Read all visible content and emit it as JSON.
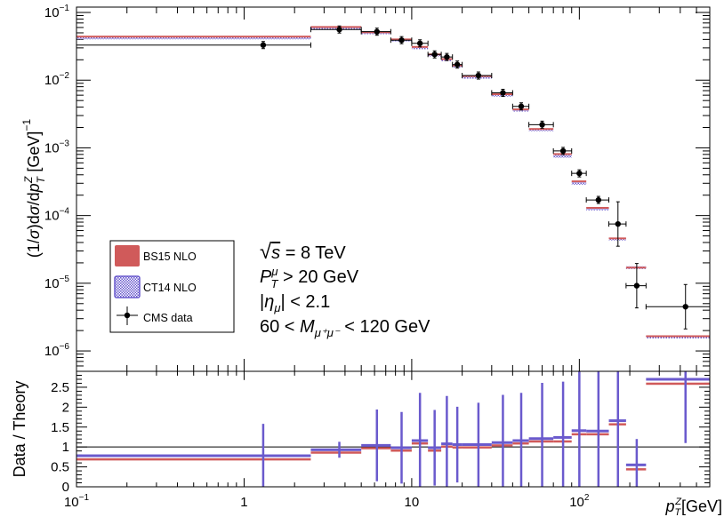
{
  "chart_data": {
    "type": "line",
    "x_scale": "log",
    "xlim": [
      0.1,
      600
    ],
    "x_tick_labels": [
      "10^{-1}",
      "1",
      "10",
      "10^{2}"
    ],
    "xlabel": "p_T^Z [GeV]",
    "upper": {
      "ylabel": "(1/σ)dσ/dp_T^Z [GeV]^{-1}",
      "y_scale": "log",
      "ylim": [
        5e-07,
        0.12
      ],
      "y_tick_labels": [
        "10^{-6}",
        "10^{-5}",
        "10^{-4}",
        "10^{-3}",
        "10^{-2}",
        "10^{-1}"
      ],
      "bin_edges": [
        0.1,
        2.5,
        5,
        7.5,
        10,
        12.5,
        15,
        17.5,
        20,
        30,
        40,
        50,
        70,
        90,
        110,
        150,
        190,
        250,
        600
      ],
      "series": [
        {
          "name": "BS15 NLO",
          "color": "#d05a5a",
          "values": [
            0.044,
            0.061,
            0.051,
            0.04,
            0.031,
            0.024,
            0.0205,
            0.0165,
            0.0115,
            0.0062,
            0.0037,
            0.0019,
            0.00081,
            0.00032,
            0.00013,
            4.6e-05,
            1.7e-05,
            1.65e-06
          ]
        },
        {
          "name": "CT14 NLO",
          "color": "#6a5acd",
          "values": [
            0.042,
            0.059,
            0.05,
            0.039,
            0.03,
            0.0235,
            0.02,
            0.016,
            0.011,
            0.006,
            0.0036,
            0.00185,
            0.00075,
            0.0003,
            0.000125,
            4.5e-05,
            1.7e-05,
            1.6e-06
          ]
        },
        {
          "name": "CMS data",
          "color": "#000000",
          "x": [
            1.3,
            3.7,
            6.2,
            8.7,
            11.2,
            13.7,
            16.2,
            18.7,
            25,
            35,
            45,
            60,
            80,
            100,
            130,
            170,
            220,
            430
          ],
          "values": [
            0.033,
            0.056,
            0.052,
            0.039,
            0.035,
            0.024,
            0.022,
            0.017,
            0.0117,
            0.0065,
            0.0041,
            0.0022,
            0.0009,
            0.00042,
            0.00017,
            7.5e-05,
            9.2e-06,
            4.5e-06
          ]
        }
      ],
      "annotations": [
        "√s = 8 TeV",
        "P_T^μ > 20 GeV",
        "|η_μ| < 2.1",
        "60 < M_{μ⁺μ⁻} < 120 GeV"
      ]
    },
    "lower": {
      "ylabel": "Data / Theory",
      "ylim": [
        0,
        2.9
      ],
      "y_tick_labels": [
        "0",
        "0.5",
        "1",
        "1.5",
        "2",
        "2.5"
      ],
      "reference_line": 1,
      "series": [
        {
          "name": "BS15 NLO",
          "color": "#d05a5a",
          "values": [
            0.75,
            0.92,
            1.03,
            0.97,
            1.15,
            0.97,
            1.07,
            1.05,
            1.05,
            1.1,
            1.15,
            1.2,
            1.2,
            1.38,
            1.38,
            1.63,
            0.5,
            2.65
          ]
        },
        {
          "name": "CT14 NLO",
          "color": "#6a5acd",
          "values": [
            0.78,
            0.93,
            1.04,
            0.98,
            1.16,
            0.98,
            1.08,
            1.06,
            1.06,
            1.11,
            1.16,
            1.21,
            1.24,
            1.41,
            1.4,
            1.66,
            0.55,
            2.7
          ]
        }
      ],
      "error_x": [
        1.3,
        3.7,
        6.2,
        8.7,
        11.2,
        13.7,
        16.2,
        18.7,
        25,
        35,
        45,
        60,
        80,
        100,
        130,
        170,
        220,
        430
      ],
      "error_half": [
        0.8,
        0.2,
        0.9,
        0.9,
        1.2,
        0.95,
        1.2,
        0.95,
        1.05,
        1.2,
        1.2,
        1.4,
        1.4,
        1.7,
        2.0,
        1.8,
        0.65,
        1.6
      ]
    },
    "legend": {
      "placement": "lower-left",
      "entries": [
        {
          "label": "BS15 NLO",
          "style": "filled",
          "color": "#d05a5a"
        },
        {
          "label": "CT14 NLO",
          "style": "hatched",
          "color": "#6a5acd"
        },
        {
          "label": "CMS data",
          "style": "marker",
          "color": "#000000"
        }
      ]
    }
  }
}
